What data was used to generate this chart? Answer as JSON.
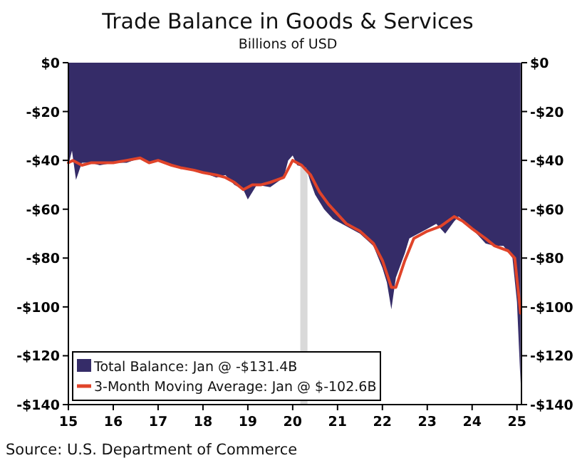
{
  "chart_data": {
    "type": "area",
    "title": "Trade Balance in Goods & Services",
    "subtitle": "Billions of USD",
    "annotations": [
      "Source: U.S. Department of Commerce"
    ],
    "xlim": [
      15,
      25.1
    ],
    "xticks": [
      15,
      16,
      17,
      18,
      19,
      20,
      21,
      22,
      23,
      24,
      25
    ],
    "ylim": [
      -140,
      0
    ],
    "yticks": [
      {
        "value": -140,
        "label": "-$140"
      },
      {
        "value": -120,
        "label": "-$120"
      },
      {
        "value": -100,
        "label": "-$100"
      },
      {
        "value": -80,
        "label": "-$80"
      },
      {
        "value": -60,
        "label": "-$60"
      },
      {
        "value": -40,
        "label": "-$40"
      },
      {
        "value": -20,
        "label": "-$20"
      },
      {
        "value": 0,
        "label": "$0"
      }
    ],
    "y2lim": [
      -140,
      0
    ],
    "y2ticks": [
      {
        "value": -140,
        "label": "-$140"
      },
      {
        "value": -120,
        "label": "-$120"
      },
      {
        "value": -100,
        "label": "-$100"
      },
      {
        "value": -80,
        "label": "-$80"
      },
      {
        "value": -60,
        "label": "-$60"
      },
      {
        "value": -40,
        "label": "-$40"
      },
      {
        "value": -20,
        "label": "-$20"
      },
      {
        "value": 0,
        "label": "$0"
      }
    ],
    "grid": false,
    "legend": "bottom left",
    "bands": [
      {
        "axis": "x",
        "from": 20.17,
        "to": 20.33,
        "color": "#d9d9d9"
      }
    ],
    "series": [
      {
        "name": "Total Balance: Jan @ -$131.4B",
        "color": "#352c68",
        "x": [
          15,
          15.08,
          15.17,
          15.3,
          15.5,
          15.7,
          16,
          16.3,
          16.6,
          16.8,
          17,
          17.3,
          17.5,
          17.8,
          18,
          18.3,
          18.5,
          18.7,
          18.9,
          19,
          19.2,
          19.5,
          19.8,
          19.9,
          20,
          20.1,
          20.3,
          20.4,
          20.5,
          20.7,
          20.9,
          21.2,
          21.5,
          21.8,
          22,
          22.1,
          22.2,
          22.3,
          22.5,
          22.6,
          22.8,
          23,
          23.2,
          23.4,
          23.6,
          23.7,
          23.9,
          24.1,
          24.3,
          24.5,
          24.7,
          24.9,
          25,
          25.08
        ],
        "values": [
          -42,
          -36,
          -48,
          -41,
          -41,
          -42,
          -41,
          -41,
          -39,
          -41,
          -40,
          -42,
          -43,
          -44,
          -45,
          -47,
          -46,
          -50,
          -52,
          -56,
          -50,
          -51,
          -47,
          -40,
          -38,
          -42,
          -43,
          -49,
          -54,
          -60,
          -64,
          -67,
          -70,
          -75,
          -84,
          -90,
          -101,
          -88,
          -78,
          -72,
          -70,
          -68,
          -66,
          -70,
          -65,
          -63,
          -66,
          -70,
          -74,
          -75,
          -75,
          -80,
          -98,
          -131.4
        ]
      },
      {
        "name": "3-Month Moving Average: Jan @ $-102.6B",
        "type": "line",
        "color": "#e0442a",
        "x": [
          15,
          15.1,
          15.3,
          15.5,
          15.7,
          16,
          16.3,
          16.6,
          16.8,
          17,
          17.3,
          17.5,
          17.8,
          18,
          18.3,
          18.5,
          18.7,
          18.9,
          19.1,
          19.3,
          19.5,
          19.8,
          20,
          20.2,
          20.4,
          20.6,
          20.8,
          21,
          21.2,
          21.5,
          21.8,
          22,
          22.2,
          22.3,
          22.5,
          22.7,
          23,
          23.3,
          23.6,
          23.8,
          24,
          24.3,
          24.5,
          24.8,
          24.95,
          25.08
        ],
        "values": [
          -41,
          -40,
          -42,
          -41,
          -41,
          -41,
          -40,
          -39,
          -41,
          -40,
          -42,
          -43,
          -44,
          -45,
          -46,
          -47,
          -49,
          -52,
          -50,
          -50,
          -49,
          -47,
          -40,
          -42,
          -46,
          -53,
          -58,
          -62,
          -66,
          -69,
          -74,
          -81,
          -92,
          -92,
          -81,
          -72,
          -69,
          -67,
          -63,
          -65,
          -68,
          -72,
          -75,
          -77,
          -80,
          -102.6
        ]
      }
    ]
  }
}
